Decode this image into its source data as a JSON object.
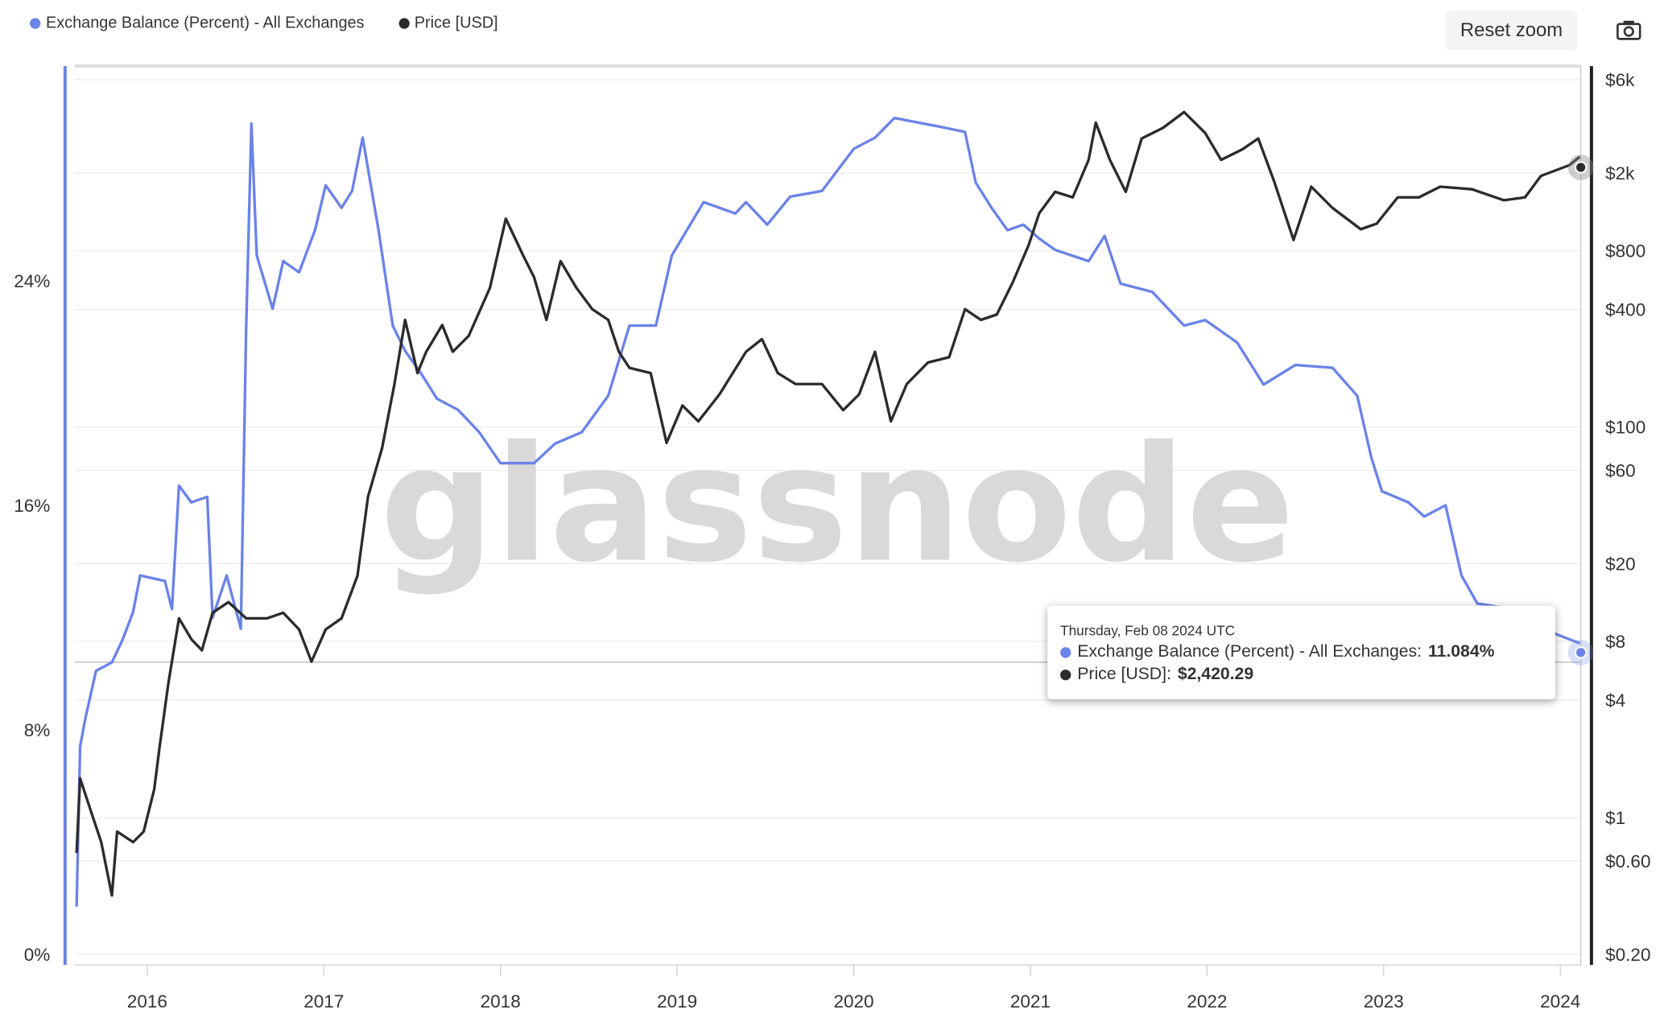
{
  "legend": [
    {
      "label": "Exchange Balance (Percent) - All Exchanges",
      "color": "#6b82e8"
    },
    {
      "label": "Price [USD]",
      "color": "#2b2b2b"
    }
  ],
  "toolbar": {
    "reset_label": "Reset zoom",
    "camera_icon": "camera-icon"
  },
  "watermark": "glassnode",
  "tooltip": {
    "date": "Thursday, Feb 08 2024 UTC",
    "series1_label": "Exchange Balance (Percent) - All Exchanges:",
    "series1_value": "11.084%",
    "series2_label": "Price [USD]:",
    "series2_value": "$2,420.29"
  },
  "chart_data": {
    "type": "line",
    "title": "",
    "xlabel": "",
    "xlim": [
      2015.54,
      2024.11
    ],
    "x_ticks": [
      "2016",
      "2017",
      "2018",
      "2019",
      "2020",
      "2021",
      "2022",
      "2023",
      "2024"
    ],
    "y_left": {
      "label": "Exchange Balance (Percent)",
      "ticks": [
        "0%",
        "8%",
        "16%",
        "24%"
      ],
      "tick_values": [
        0,
        8,
        16,
        24
      ],
      "range": [
        0,
        31.6
      ]
    },
    "y_right": {
      "label": "Price [USD]",
      "scale": "log",
      "ticks": [
        "$0.20",
        "$0.60",
        "$1",
        "$4",
        "$8",
        "$20",
        "$60",
        "$100",
        "$400",
        "$800",
        "$2k",
        "$6k"
      ],
      "tick_values": [
        0.2,
        0.6,
        1,
        4,
        8,
        20,
        60,
        100,
        400,
        800,
        2000,
        6000
      ],
      "range": [
        0.2,
        7000
      ]
    },
    "series": [
      {
        "name": "Exchange Balance (Percent) - All Exchanges",
        "axis": "left",
        "color": "#6b82e8",
        "x": [
          2015.6,
          2015.62,
          2015.65,
          2015.71,
          2015.8,
          2015.86,
          2015.92,
          2015.96,
          2016.1,
          2016.14,
          2016.18,
          2016.25,
          2016.34,
          2016.37,
          2016.45,
          2016.53,
          2016.56,
          2016.59,
          2016.62,
          2016.71,
          2016.77,
          2016.86,
          2016.95,
          2017.01,
          2017.1,
          2017.16,
          2017.22,
          2017.31,
          2017.39,
          2017.46,
          2017.55,
          2017.64,
          2017.76,
          2017.88,
          2018.0,
          2018.19,
          2018.31,
          2018.46,
          2018.61,
          2018.73,
          2018.88,
          2018.97,
          2019.15,
          2019.33,
          2019.39,
          2019.51,
          2019.64,
          2019.82,
          2020.0,
          2020.12,
          2020.23,
          2020.48,
          2020.63,
          2020.69,
          2020.78,
          2020.87,
          2020.96,
          2021.05,
          2021.14,
          2021.33,
          2021.42,
          2021.51,
          2021.69,
          2021.87,
          2021.99,
          2022.17,
          2022.32,
          2022.5,
          2022.71,
          2022.85,
          2022.93,
          2022.99,
          2023.14,
          2023.23,
          2023.35,
          2023.44,
          2023.53,
          2023.74,
          2023.98,
          2024.11
        ],
        "values": [
          1.7,
          7.4,
          8.4,
          10.1,
          10.4,
          11.2,
          12.2,
          13.5,
          13.3,
          12.3,
          16.7,
          16.1,
          16.3,
          12.0,
          13.5,
          11.6,
          22.2,
          29.6,
          24.9,
          23.0,
          24.7,
          24.3,
          25.8,
          27.4,
          26.6,
          27.2,
          29.1,
          25.8,
          22.4,
          21.5,
          20.7,
          19.8,
          19.4,
          18.6,
          17.5,
          17.5,
          18.2,
          18.6,
          19.9,
          22.4,
          22.4,
          24.9,
          26.8,
          26.4,
          26.8,
          26.0,
          27.0,
          27.2,
          28.7,
          29.1,
          29.8,
          29.5,
          29.3,
          27.5,
          26.6,
          25.8,
          26.0,
          25.5,
          25.1,
          24.7,
          25.6,
          23.9,
          23.6,
          22.4,
          22.6,
          21.8,
          20.3,
          21.0,
          20.9,
          19.9,
          17.7,
          16.5,
          16.1,
          15.6,
          16.0,
          13.5,
          12.5,
          12.3,
          11.4,
          11.084
        ]
      },
      {
        "name": "Price [USD]",
        "axis": "right",
        "color": "#2b2b2b",
        "x": [
          2015.6,
          2015.62,
          2015.68,
          2015.74,
          2015.8,
          2015.83,
          2015.92,
          2015.98,
          2016.04,
          2016.07,
          2016.12,
          2016.18,
          2016.25,
          2016.31,
          2016.37,
          2016.46,
          2016.56,
          2016.68,
          2016.77,
          2016.86,
          2016.93,
          2017.01,
          2017.1,
          2017.19,
          2017.25,
          2017.33,
          2017.4,
          2017.46,
          2017.53,
          2017.58,
          2017.67,
          2017.73,
          2017.82,
          2017.94,
          2018.03,
          2018.13,
          2018.19,
          2018.26,
          2018.34,
          2018.43,
          2018.52,
          2018.61,
          2018.67,
          2018.73,
          2018.85,
          2018.94,
          2019.03,
          2019.12,
          2019.24,
          2019.39,
          2019.48,
          2019.57,
          2019.67,
          2019.82,
          2019.94,
          2020.03,
          2020.12,
          2020.21,
          2020.3,
          2020.42,
          2020.54,
          2020.63,
          2020.72,
          2020.81,
          2020.9,
          2020.99,
          2021.05,
          2021.14,
          2021.24,
          2021.33,
          2021.37,
          2021.45,
          2021.54,
          2021.63,
          2021.75,
          2021.87,
          2021.99,
          2022.08,
          2022.2,
          2022.29,
          2022.38,
          2022.49,
          2022.59,
          2022.71,
          2022.87,
          2022.96,
          2023.08,
          2023.2,
          2023.32,
          2023.5,
          2023.68,
          2023.8,
          2023.89,
          2024.05,
          2024.11
        ],
        "values": [
          0.66,
          1.59,
          1.09,
          0.75,
          0.4,
          0.85,
          0.75,
          0.85,
          1.4,
          2.3,
          4.9,
          10.5,
          8.2,
          7.2,
          11.2,
          12.7,
          10.5,
          10.5,
          11.2,
          9.2,
          6.3,
          9.2,
          10.5,
          17.3,
          44,
          78,
          166,
          354,
          189,
          243,
          333,
          243,
          293,
          516,
          1167,
          751,
          585,
          354,
          707,
          516,
          401,
          354,
          243,
          201,
          189,
          83,
          129,
          107,
          147,
          243,
          282,
          189,
          166,
          166,
          122,
          147,
          243,
          107,
          166,
          214,
          228,
          401,
          354,
          377,
          550,
          853,
          1245,
          1600,
          1500,
          2333,
          3620,
          2333,
          1600,
          3000,
          3400,
          4100,
          3200,
          2333,
          2640,
          3000,
          1810,
          908,
          1700,
          1325,
          1030,
          1100,
          1500,
          1500,
          1700,
          1650,
          1450,
          1500,
          1930,
          2190,
          2420.29
        ]
      }
    ]
  }
}
